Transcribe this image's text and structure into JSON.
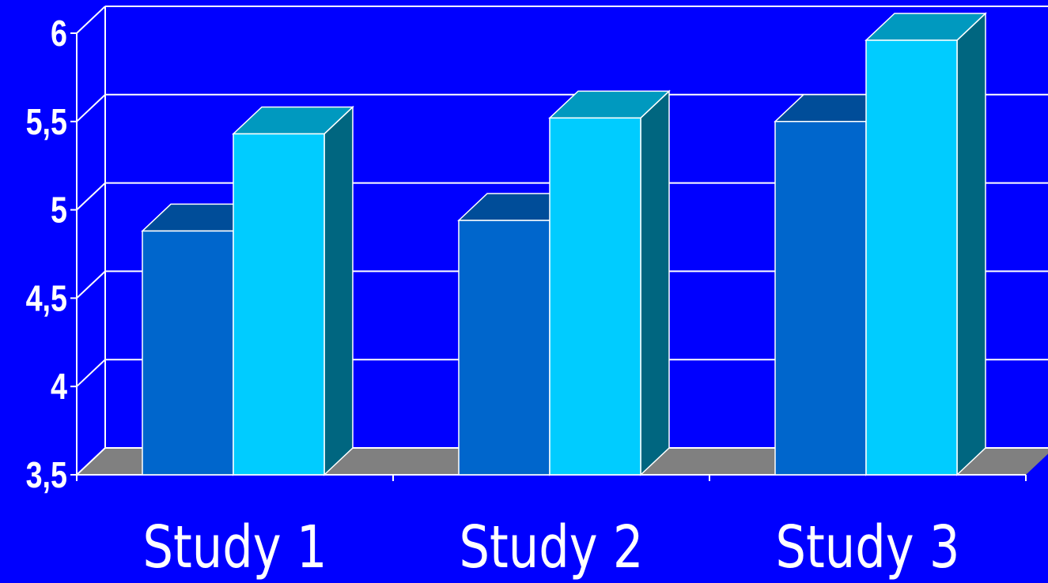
{
  "chart_data": {
    "type": "bar",
    "categories": [
      "Study 1",
      "Study 2",
      "Study 3"
    ],
    "series": [
      {
        "values": [
          4.88,
          4.94,
          5.5
        ],
        "color": "#0066CC"
      },
      {
        "values": [
          5.43,
          5.52,
          5.96
        ],
        "color": "#00CCFF"
      }
    ],
    "y_ticks": [
      "3,5",
      "4",
      "4,5",
      "5",
      "5,5",
      "6"
    ],
    "ylim": [
      3.5,
      6
    ],
    "grid": true,
    "style": "3d",
    "colors": {
      "background": "#0000FF",
      "floor": "#808080",
      "grid": "#FFFFFF"
    }
  }
}
